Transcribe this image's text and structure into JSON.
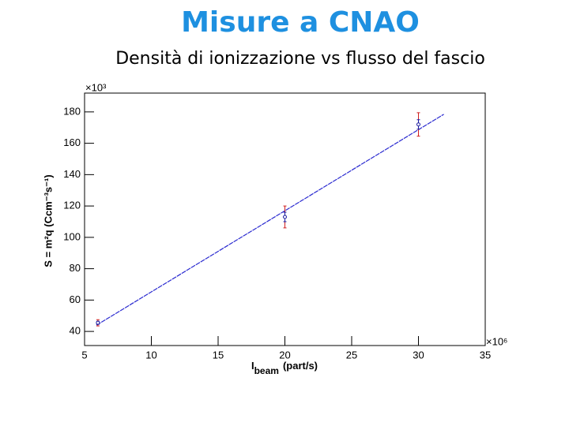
{
  "header": {
    "title": "Misure a CNAO",
    "subtitle": "Densità di ionizzazione vs flusso del fascio"
  },
  "chart_data": {
    "type": "scatter",
    "ylabel": "S = m²q (Ccm⁻³s⁻¹)",
    "xlabel_symbol": "I",
    "xlabel_subscript": "beam",
    "xlabel_unit": "(part/s)",
    "y_multiplier": "×10³",
    "x_multiplier": "×10⁶",
    "x": [
      6,
      20,
      30
    ],
    "series": [
      {
        "color": "#1a1aa0",
        "values": [
          45.5,
          113,
          172
        ],
        "errors": [
          2,
          7,
          7.5
        ],
        "error_color": "#d02020",
        "errors2": [
          1,
          3,
          3
        ],
        "error2_color": "#1a1aa0"
      }
    ],
    "fit": {
      "color": "#2a2ad0",
      "x": [
        5.9,
        31.9
      ],
      "values": [
        44,
        178.5
      ]
    },
    "xlim": [
      5,
      35
    ],
    "xticks": [
      5,
      10,
      15,
      20,
      25,
      30,
      35
    ],
    "ylim": [
      31,
      192
    ],
    "yticks": [
      40,
      60,
      80,
      100,
      120,
      140,
      160,
      180
    ]
  }
}
